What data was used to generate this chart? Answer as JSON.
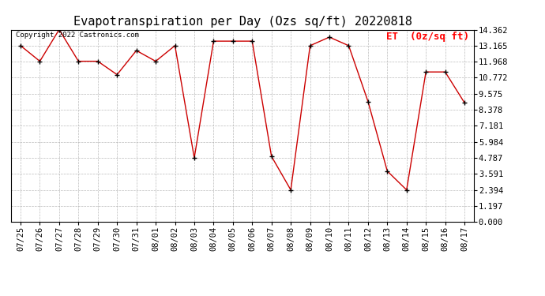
{
  "title": "Evapotranspiration per Day (Ozs sq/ft) 20220818",
  "legend_label": "ET  (0z/sq ft)",
  "copyright_text": "Copyright 2022 Castronics.com",
  "x_labels": [
    "07/25",
    "07/26",
    "07/27",
    "07/28",
    "07/29",
    "07/30",
    "07/31",
    "08/01",
    "08/02",
    "08/03",
    "08/04",
    "08/05",
    "08/06",
    "08/07",
    "08/08",
    "08/09",
    "08/10",
    "08/11",
    "08/12",
    "08/13",
    "08/14",
    "08/15",
    "08/16",
    "08/17"
  ],
  "y_values": [
    13.165,
    12.0,
    14.362,
    12.0,
    12.0,
    11.0,
    12.8,
    12.0,
    13.165,
    4.787,
    13.5,
    13.5,
    13.5,
    4.9,
    2.394,
    13.165,
    13.8,
    13.165,
    9.0,
    3.8,
    2.394,
    11.2,
    11.2,
    8.9
  ],
  "line_color": "#cc0000",
  "marker_color": "#000000",
  "background_color": "#ffffff",
  "grid_color": "#aaaaaa",
  "y_tick_values": [
    0.0,
    1.197,
    2.394,
    3.591,
    4.787,
    5.984,
    7.181,
    8.378,
    9.575,
    10.772,
    11.968,
    13.165,
    14.362
  ],
  "ylim": [
    0.0,
    14.362
  ],
  "title_fontsize": 11,
  "axis_fontsize": 7.5,
  "legend_fontsize": 9,
  "copyright_fontsize": 6.5
}
